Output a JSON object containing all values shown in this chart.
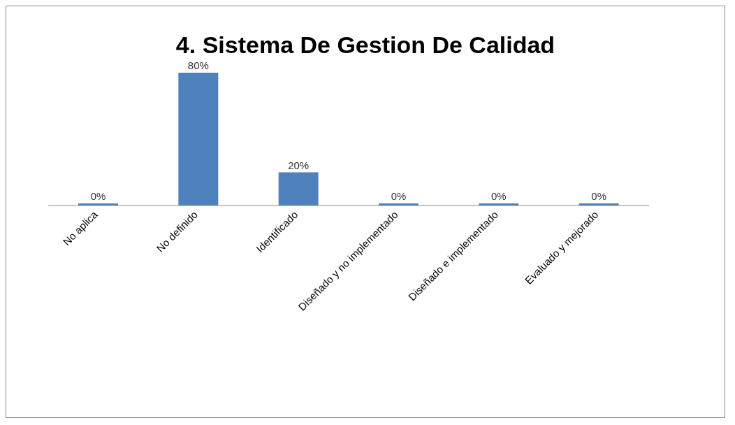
{
  "chart_data": {
    "type": "bar",
    "title": "4. Sistema De Gestion De Calidad",
    "categories": [
      "No aplica",
      "No definido",
      "Identificado",
      "Diseñado y no implementado",
      "Diseñado e implementado",
      "Evaluado y mejorado"
    ],
    "values": [
      0,
      80,
      20,
      0,
      0,
      0
    ],
    "value_labels": [
      "0%",
      "80%",
      "20%",
      "0%",
      "0%",
      "0%"
    ],
    "color": "#4f81bd",
    "grid": false
  }
}
